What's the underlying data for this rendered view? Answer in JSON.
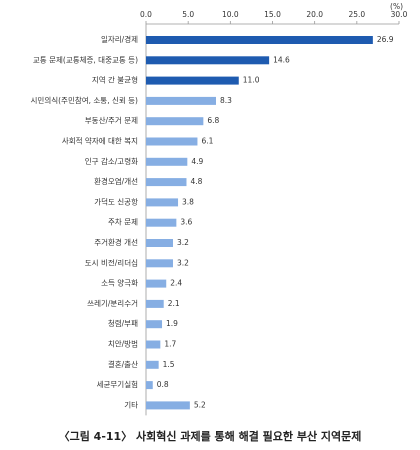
{
  "chart_data": {
    "type": "barh",
    "unit": "(%)",
    "caption": "〈그림 4-11〉 사회혁신 과제를 통해 해결 필요한 부산 지역문제",
    "categories": [
      "일자리/경제",
      "교통 문제(교통체증, 대중교통 등)",
      "지역 간 불균형",
      "시민의식(주민참여, 소통, 신뢰 등)",
      "부동산/주거 문제",
      "사회적 약자에 대한 복지",
      "인구 감소/고령화",
      "환경오염/개선",
      "가덕도 신공항",
      "주차 문제",
      "주거환경 개선",
      "도시 비전/리더십",
      "소득 양극화",
      "쓰레기/분리수거",
      "청렴/부패",
      "치안/방범",
      "결혼/출산",
      "세균무기실험",
      "기타"
    ],
    "values": [
      26.9,
      14.6,
      11.0,
      8.3,
      6.8,
      6.1,
      4.9,
      4.8,
      3.8,
      3.6,
      3.2,
      3.2,
      2.4,
      2.1,
      1.9,
      1.7,
      1.5,
      0.8,
      5.2
    ],
    "value_labels": [
      "26.9",
      "14.6",
      "11.0",
      "8.3",
      "6.8",
      "6.1",
      "4.9",
      "4.8",
      "3.8",
      "3.6",
      "3.2",
      "3.2",
      "2.4",
      "2.1",
      "1.9",
      "1.7",
      "1.5",
      "0.8",
      "5.2"
    ],
    "colors": [
      "#1e5bb0",
      "#1e5bb0",
      "#1e5bb0",
      "#86aee3",
      "#86aee3",
      "#86aee3",
      "#86aee3",
      "#86aee3",
      "#86aee3",
      "#86aee3",
      "#86aee3",
      "#86aee3",
      "#86aee3",
      "#86aee3",
      "#86aee3",
      "#86aee3",
      "#86aee3",
      "#86aee3",
      "#86aee3"
    ],
    "xlim": [
      0,
      30
    ],
    "xticks": [
      {
        "value": 0,
        "label": "0.0"
      },
      {
        "value": 5,
        "label": "5.0"
      },
      {
        "value": 10,
        "label": "10.0"
      },
      {
        "value": 15,
        "label": "15.0"
      },
      {
        "value": 20,
        "label": "20.0"
      },
      {
        "value": 25,
        "label": "25.0"
      },
      {
        "value": 30,
        "label": "30.0"
      }
    ],
    "grid": false
  }
}
